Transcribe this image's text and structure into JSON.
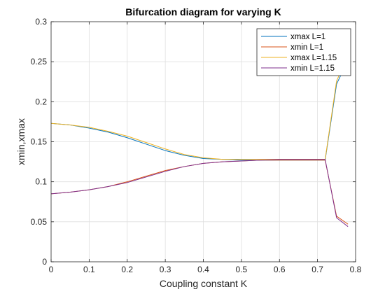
{
  "chart_data": {
    "type": "line",
    "title": "Bifurcation diagram for varying K",
    "xlabel": "Coupling constant K",
    "ylabel": "xmin,xmax",
    "xlim": [
      0,
      0.8
    ],
    "ylim": [
      0,
      0.3
    ],
    "xticks": [
      0,
      0.1,
      0.2,
      0.3,
      0.4,
      0.5,
      0.6,
      0.7,
      0.8
    ],
    "yticks": [
      0,
      0.05,
      0.1,
      0.15,
      0.2,
      0.25,
      0.3
    ],
    "xtick_labels": [
      "0",
      "0.1",
      "0.2",
      "0.3",
      "0.4",
      "0.5",
      "0.6",
      "0.7",
      "0.8"
    ],
    "ytick_labels": [
      "0",
      "0.05",
      "0.1",
      "0.15",
      "0.2",
      "0.25",
      "0.3"
    ],
    "grid": true,
    "legend_position": "top-right",
    "series": [
      {
        "name": "xmax L=1",
        "color": "#0072bd",
        "x": [
          0,
          0.05,
          0.1,
          0.15,
          0.2,
          0.25,
          0.3,
          0.35,
          0.4,
          0.45,
          0.5,
          0.55,
          0.6,
          0.65,
          0.7,
          0.72,
          0.75,
          0.78
        ],
        "y": [
          0.173,
          0.171,
          0.167,
          0.162,
          0.155,
          0.147,
          0.139,
          0.133,
          0.129,
          0.128,
          0.127,
          0.127,
          0.127,
          0.127,
          0.127,
          0.127,
          0.222,
          0.252
        ]
      },
      {
        "name": "xmin L=1",
        "color": "#d95319",
        "x": [
          0,
          0.05,
          0.1,
          0.15,
          0.2,
          0.25,
          0.3,
          0.35,
          0.4,
          0.45,
          0.5,
          0.55,
          0.6,
          0.65,
          0.7,
          0.72,
          0.75,
          0.78
        ],
        "y": [
          0.085,
          0.087,
          0.09,
          0.094,
          0.1,
          0.107,
          0.114,
          0.119,
          0.123,
          0.125,
          0.126,
          0.127,
          0.127,
          0.127,
          0.127,
          0.127,
          0.057,
          0.047
        ]
      },
      {
        "name": "xmax L=1.15",
        "color": "#edb120",
        "x": [
          0,
          0.05,
          0.1,
          0.15,
          0.2,
          0.25,
          0.3,
          0.35,
          0.4,
          0.45,
          0.5,
          0.55,
          0.6,
          0.65,
          0.7,
          0.72,
          0.75,
          0.78
        ],
        "y": [
          0.173,
          0.171,
          0.168,
          0.163,
          0.157,
          0.149,
          0.141,
          0.134,
          0.13,
          0.128,
          0.128,
          0.128,
          0.128,
          0.128,
          0.128,
          0.128,
          0.226,
          0.257
        ]
      },
      {
        "name": "xmin L=1.15",
        "color": "#7e2f8e",
        "x": [
          0,
          0.05,
          0.1,
          0.15,
          0.2,
          0.25,
          0.3,
          0.35,
          0.4,
          0.45,
          0.5,
          0.55,
          0.6,
          0.65,
          0.7,
          0.72,
          0.75,
          0.78
        ],
        "y": [
          0.085,
          0.087,
          0.09,
          0.094,
          0.099,
          0.106,
          0.113,
          0.119,
          0.123,
          0.125,
          0.126,
          0.127,
          0.128,
          0.128,
          0.128,
          0.128,
          0.055,
          0.044
        ]
      }
    ]
  }
}
